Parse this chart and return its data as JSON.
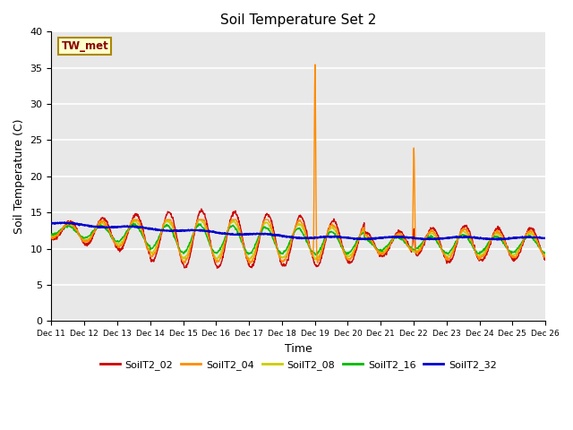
{
  "title": "Soil Temperature Set 2",
  "xlabel": "Time",
  "ylabel": "Soil Temperature (C)",
  "ylim": [
    0,
    40
  ],
  "yticks": [
    0,
    5,
    10,
    15,
    20,
    25,
    30,
    35,
    40
  ],
  "xtick_labels": [
    "Dec 11",
    "Dec 12",
    "Dec 13",
    "Dec 14",
    "Dec 15",
    "Dec 16",
    "Dec 17",
    "Dec 18",
    "Dec 19",
    "Dec 20",
    "Dec 21",
    "Dec 22",
    "Dec 23",
    "Dec 24",
    "Dec 25",
    "Dec 26"
  ],
  "background_color": "#e8e8e8",
  "grid_color": "#ffffff",
  "annotation_text": "TW_met",
  "annotation_box_color": "#ffffcc",
  "annotation_box_edge": "#aa8800",
  "annotation_text_color": "#880000",
  "series": {
    "SoilT2_02": {
      "color": "#cc0000",
      "lw": 1.0
    },
    "SoilT2_04": {
      "color": "#ff8c00",
      "lw": 1.0
    },
    "SoilT2_08": {
      "color": "#cccc00",
      "lw": 1.0
    },
    "SoilT2_16": {
      "color": "#00bb00",
      "lw": 1.0
    },
    "SoilT2_32": {
      "color": "#0000cc",
      "lw": 1.5
    }
  }
}
